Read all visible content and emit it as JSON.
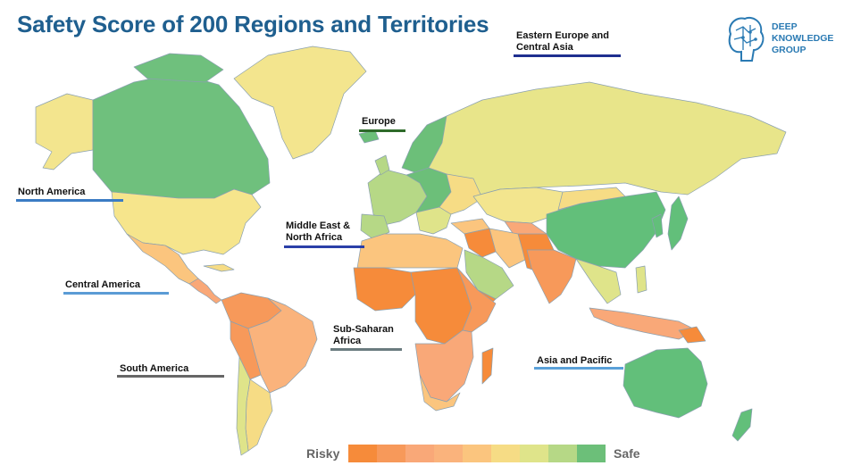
{
  "header": {
    "title": "Safety Score of 200 Regions and Territories"
  },
  "logo": {
    "text": "DEEP\nKNOWLEDGE\nGROUP",
    "icon": "brain-icon"
  },
  "regions": {
    "eastern_europe": {
      "label": "Eastern Europe and\nCentral Asia",
      "underline_color": "#1f2f8f"
    },
    "europe": {
      "label": "Europe",
      "underline_color": "#2e6b2a"
    },
    "north_america": {
      "label": "North America",
      "underline_color": "#3b7cc4"
    },
    "mena": {
      "label": "Middle East &\nNorth Africa",
      "underline_color": "#2b3fa8"
    },
    "central_america": {
      "label": "Central America",
      "underline_color": "#5b9bd5"
    },
    "ssa": {
      "label": "Sub-Saharan\nAfrica",
      "underline_color": "#6a7b7f"
    },
    "south_america": {
      "label": "South America",
      "underline_color": "#666666"
    },
    "asia_pacific": {
      "label": "Asia and Pacific",
      "underline_color": "#5aa0d8"
    }
  },
  "legend": {
    "low_label": "Risky",
    "high_label": "Safe",
    "colors": [
      "#f68b3a",
      "#f7995a",
      "#f9a878",
      "#fab37c",
      "#fbc57e",
      "#f6dc85",
      "#dfe48a",
      "#b6d886",
      "#6cbf79"
    ]
  },
  "palette": {
    "ocean": "#ffffff",
    "border": "#8aa0b0",
    "risky": "#f68b3a",
    "mid": "#fbc57e",
    "yellow": "#f3e58e",
    "safe": "#62bf7a"
  }
}
